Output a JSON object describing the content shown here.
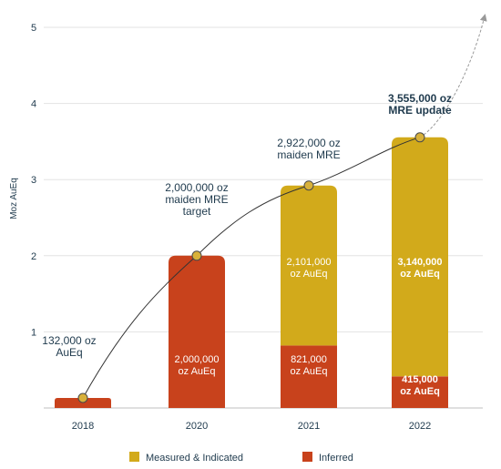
{
  "chart_data": {
    "type": "bar",
    "stacked": true,
    "ylabel": "Moz AuEq",
    "ylim": [
      0,
      5
    ],
    "yticks": [
      1,
      2,
      3,
      4,
      5
    ],
    "grid": true,
    "legend_position": "bottom",
    "categories": [
      "2018",
      "2020",
      "2021",
      "2022"
    ],
    "series": [
      {
        "name": "Inferred",
        "color": "#c8421c",
        "values": [
          0.132,
          2.0,
          0.821,
          0.415
        ],
        "labels": [
          "",
          "2,000,000 oz AuEq",
          "821,000 oz AuEq",
          "415,000 oz AuEq"
        ]
      },
      {
        "name": "Measured & Indicated",
        "color": "#d2aa1b",
        "values": [
          0,
          0,
          2.101,
          3.14
        ],
        "labels": [
          "",
          "",
          "2,101,000 oz AuEq",
          "3,140,000 oz AuEq"
        ]
      }
    ],
    "totals": [
      0.132,
      2.0,
      2.922,
      3.555
    ],
    "annotations": [
      "132,000 oz AuEq",
      "2,000,000 oz maiden MRE target",
      "2,922,000 oz maiden MRE",
      "3,555,000 oz MRE update"
    ],
    "legend": [
      "Measured & Indicated",
      "Inferred"
    ],
    "colors": {
      "trend_line": "#333333",
      "trend_arrow": "#999999",
      "marker_fill": "#d8b13a",
      "grid": "#e3e3e3",
      "label_dark": "#1f3a4d",
      "label_light": "#ffffff"
    }
  }
}
